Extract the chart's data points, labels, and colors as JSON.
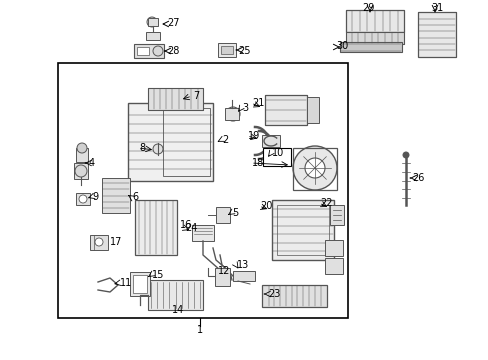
{
  "bg_color": "#ffffff",
  "lc": "#000000",
  "pc": "#555555",
  "fs": 7.0,
  "fig_w": 4.89,
  "fig_h": 3.6,
  "dpi": 100
}
